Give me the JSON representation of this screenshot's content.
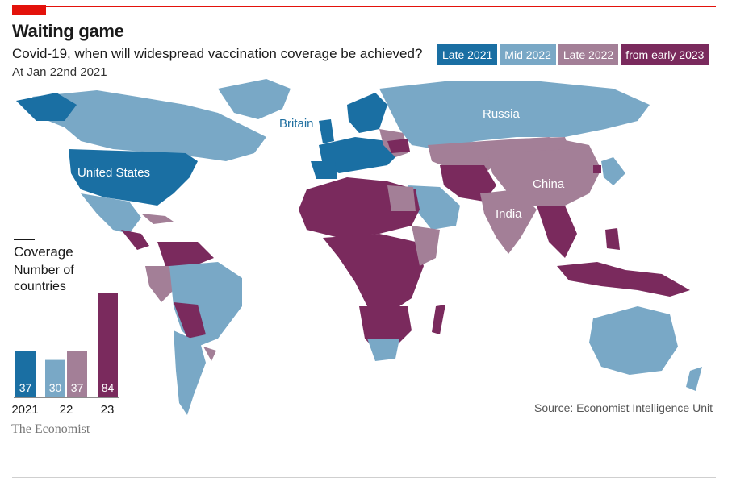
{
  "header": {
    "title": "Waiting game",
    "subtitle": "Covid-19, when will widespread vaccination coverage be achieved?",
    "date": "At Jan 22nd 2021"
  },
  "legend": [
    {
      "label": "Late 2021",
      "color": "#1a6fa3"
    },
    {
      "label": "Mid 2022",
      "color": "#79a8c6"
    },
    {
      "label": "Late 2022",
      "color": "#a37f97"
    },
    {
      "label": "from early 2023",
      "color": "#7a2a5d"
    }
  ],
  "map": {
    "labels": {
      "russia": "Russia",
      "britain": "Britain",
      "united_states": "United States",
      "china": "China",
      "india": "India"
    }
  },
  "coverage": {
    "title": "Coverage",
    "subtitle": "Number of countries"
  },
  "chart_data": {
    "type": "bar",
    "title": "Coverage",
    "subtitle": "Number of countries",
    "categories": [
      "2021",
      "22",
      "22",
      "23"
    ],
    "series": [
      {
        "name": "Late 2021",
        "category": "2021",
        "value": 37,
        "color": "#1a6fa3"
      },
      {
        "name": "Mid 2022",
        "category": "22",
        "value": 30,
        "color": "#79a8c6"
      },
      {
        "name": "Late 2022",
        "category": "22",
        "value": 37,
        "color": "#a37f97"
      },
      {
        "name": "from early 2023",
        "category": "23",
        "value": 84,
        "color": "#7a2a5d"
      }
    ],
    "xlabels": [
      "2021",
      "22",
      "23"
    ]
  },
  "footer": {
    "source": "Source: Economist Intelligence Unit",
    "brand": "The Economist"
  }
}
